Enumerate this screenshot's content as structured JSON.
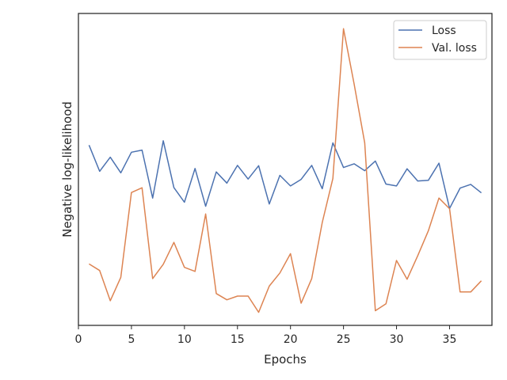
{
  "chart_data": {
    "type": "line",
    "title": "",
    "xlabel": "Epochs",
    "ylabel": "Negative log-likelihood",
    "xlim": [
      0,
      39
    ],
    "ylim": [
      0,
      100
    ],
    "xticks": [
      0,
      5,
      10,
      15,
      20,
      25,
      30,
      35
    ],
    "yticks_shown": false,
    "grid": false,
    "legend": {
      "placement": "top-right"
    },
    "x": [
      1,
      2,
      3,
      4,
      5,
      6,
      7,
      8,
      9,
      10,
      11,
      12,
      13,
      14,
      15,
      16,
      17,
      18,
      19,
      20,
      21,
      22,
      23,
      24,
      25,
      26,
      27,
      28,
      29,
      30,
      31,
      32,
      33,
      34,
      35,
      36,
      37,
      38
    ],
    "series": [
      {
        "name": "Loss",
        "color": "#4c72b0",
        "values": [
          57.8,
          49.4,
          53.9,
          48.9,
          55.5,
          56.2,
          40.8,
          59.2,
          44.2,
          39.5,
          50.3,
          38.2,
          49.2,
          45.6,
          51.3,
          46.9,
          51.2,
          38.9,
          48.1,
          44.7,
          46.8,
          51.3,
          43.8,
          58.5,
          50.6,
          51.8,
          49.6,
          52.7,
          45.3,
          44.7,
          50.2,
          46.3,
          46.5,
          52.0,
          37.5,
          44.0,
          45.2,
          42.5
        ]
      },
      {
        "name": "Val. loss",
        "color": "#dd8452",
        "values": [
          19.7,
          17.6,
          7.9,
          15.4,
          42.6,
          44.1,
          15.0,
          19.6,
          26.6,
          18.6,
          17.3,
          35.7,
          10.2,
          8.2,
          9.4,
          9.4,
          4.2,
          12.6,
          16.8,
          23.0,
          7.1,
          15.0,
          33.0,
          47.1,
          95.1,
          77.4,
          58.5,
          4.7,
          6.9,
          20.8,
          14.8,
          22.3,
          30.3,
          40.8,
          37.4,
          10.7,
          10.7,
          14.3
        ]
      }
    ]
  }
}
